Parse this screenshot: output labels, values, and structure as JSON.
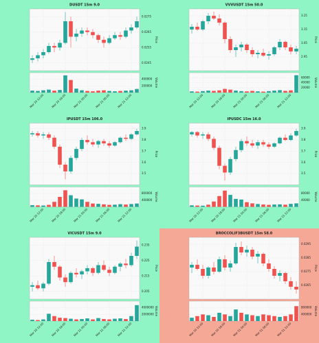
{
  "chart_data": [
    {
      "type": "candlestick",
      "title": "DUSDT 15m 9.0",
      "ylabel": "Price",
      "volume_label": "Volume",
      "background": "#8ff5c4",
      "up_color": "#26a69a",
      "down_color": "#ef5350",
      "ylim": [
        0.024,
        0.028
      ],
      "yticks": [
        0.0245,
        0.0255,
        0.0265,
        0.0275
      ],
      "volume_ylim": [
        0,
        600000
      ],
      "volume_yticks": [
        200000,
        400000
      ],
      "xticks": [
        {
          "value": 2,
          "label": "Mar 20 12:00"
        },
        {
          "value": 6,
          "label": "Mar 20 18:00"
        },
        {
          "value": 10,
          "label": "Mar 21 00:00"
        },
        {
          "value": 14,
          "label": "Mar 21 06:00"
        },
        {
          "value": 18,
          "label": "Mar 21 12:00"
        }
      ],
      "candles": [
        [
          0.0247,
          0.025,
          0.0245,
          0.0248,
          60000
        ],
        [
          0.0248,
          0.0252,
          0.0246,
          0.025,
          50000
        ],
        [
          0.025,
          0.0254,
          0.0248,
          0.0252,
          70000
        ],
        [
          0.0252,
          0.0258,
          0.0251,
          0.0256,
          90000
        ],
        [
          0.0256,
          0.0258,
          0.0252,
          0.0255,
          60000
        ],
        [
          0.0255,
          0.026,
          0.0253,
          0.0258,
          80000
        ],
        [
          0.0258,
          0.0278,
          0.0257,
          0.0272,
          520000
        ],
        [
          0.0272,
          0.0275,
          0.0255,
          0.0262,
          380000
        ],
        [
          0.0262,
          0.0267,
          0.0259,
          0.0264,
          120000
        ],
        [
          0.0264,
          0.0268,
          0.0262,
          0.0266,
          70000
        ],
        [
          0.0266,
          0.0268,
          0.0263,
          0.0265,
          50000
        ],
        [
          0.0265,
          0.0267,
          0.0261,
          0.0263,
          40000
        ],
        [
          0.0263,
          0.0264,
          0.0258,
          0.026,
          60000
        ],
        [
          0.026,
          0.0262,
          0.0255,
          0.0258,
          70000
        ],
        [
          0.0258,
          0.0263,
          0.0257,
          0.0261,
          50000
        ],
        [
          0.0261,
          0.0265,
          0.026,
          0.0263,
          40000
        ],
        [
          0.0263,
          0.0265,
          0.026,
          0.0262,
          50000
        ],
        [
          0.0262,
          0.0268,
          0.0261,
          0.0266,
          60000
        ],
        [
          0.0266,
          0.027,
          0.0264,
          0.0268,
          70000
        ],
        [
          0.0268,
          0.0275,
          0.0267,
          0.0272,
          110000
        ]
      ]
    },
    {
      "type": "candlestick",
      "title": "VVVUSDT 15m 50.0",
      "ylabel": "Price",
      "volume_label": "Volume",
      "background": "#8ff5c4",
      "up_color": "#26a69a",
      "down_color": "#ef5350",
      "ylim": [
        2.85,
        3.3
      ],
      "yticks": [
        2.95,
        3.05,
        3.15,
        3.25
      ],
      "volume_ylim": [
        0,
        80000
      ],
      "volume_yticks": [
        20000,
        40000,
        60000
      ],
      "xticks": [
        {
          "value": 2,
          "label": "Mar 20 12:00"
        },
        {
          "value": 6,
          "label": "Mar 20 18:00"
        },
        {
          "value": 10,
          "label": "Mar 21 00:00"
        },
        {
          "value": 14,
          "label": "Mar 21 06:00"
        },
        {
          "value": 18,
          "label": "Mar 21 12:00"
        }
      ],
      "candles": [
        [
          3.15,
          3.19,
          3.12,
          3.17,
          5000
        ],
        [
          3.17,
          3.2,
          3.14,
          3.15,
          4000
        ],
        [
          3.15,
          3.22,
          3.14,
          3.21,
          6000
        ],
        [
          3.21,
          3.27,
          3.19,
          3.25,
          8000
        ],
        [
          3.25,
          3.28,
          3.22,
          3.23,
          7000
        ],
        [
          3.23,
          3.26,
          3.18,
          3.2,
          9000
        ],
        [
          3.2,
          3.21,
          3.05,
          3.08,
          15000
        ],
        [
          3.08,
          3.1,
          2.98,
          3.0,
          12000
        ],
        [
          3.0,
          3.04,
          2.95,
          3.02,
          8000
        ],
        [
          3.02,
          3.06,
          2.99,
          3.04,
          6000
        ],
        [
          3.04,
          3.05,
          2.98,
          3.0,
          5000
        ],
        [
          3.0,
          3.02,
          2.95,
          2.97,
          7000
        ],
        [
          2.97,
          3.0,
          2.94,
          2.98,
          5000
        ],
        [
          2.98,
          3.01,
          2.95,
          2.96,
          4000
        ],
        [
          2.96,
          2.99,
          2.93,
          2.97,
          6000
        ],
        [
          2.97,
          3.03,
          2.96,
          3.02,
          8000
        ],
        [
          3.02,
          3.08,
          3.0,
          3.06,
          10000
        ],
        [
          3.06,
          3.07,
          3.0,
          3.02,
          7000
        ],
        [
          3.02,
          3.04,
          2.97,
          2.99,
          9000
        ],
        [
          2.99,
          3.03,
          2.97,
          3.01,
          70000
        ]
      ]
    },
    {
      "type": "candlestick",
      "title": "IPUSDT 15m 106.0",
      "ylabel": "Price",
      "volume_label": "Volume",
      "background": "#8ff5c4",
      "up_color": "#26a69a",
      "down_color": "#ef5350",
      "ylim": [
        3.4,
        3.95
      ],
      "yticks": [
        3.5,
        3.6,
        3.7,
        3.8,
        3.9
      ],
      "volume_ylim": [
        0,
        1200000
      ],
      "volume_yticks": [
        400000,
        800000
      ],
      "xticks": [
        {
          "value": 2,
          "label": "Mar 20 12:00"
        },
        {
          "value": 6,
          "label": "Mar 20 18:00"
        },
        {
          "value": 10,
          "label": "Mar 21 00:00"
        },
        {
          "value": 14,
          "label": "Mar 21 06:00"
        },
        {
          "value": 18,
          "label": "Mar 21 12:00"
        }
      ],
      "candles": [
        [
          3.85,
          3.88,
          3.83,
          3.86,
          100000
        ],
        [
          3.86,
          3.88,
          3.82,
          3.84,
          90000
        ],
        [
          3.84,
          3.87,
          3.81,
          3.85,
          80000
        ],
        [
          3.85,
          3.87,
          3.8,
          3.82,
          120000
        ],
        [
          3.82,
          3.84,
          3.72,
          3.74,
          300000
        ],
        [
          3.74,
          3.76,
          3.55,
          3.58,
          600000
        ],
        [
          3.58,
          3.6,
          3.45,
          3.52,
          1000000
        ],
        [
          3.52,
          3.66,
          3.5,
          3.64,
          700000
        ],
        [
          3.64,
          3.74,
          3.62,
          3.72,
          500000
        ],
        [
          3.72,
          3.82,
          3.7,
          3.8,
          450000
        ],
        [
          3.8,
          3.84,
          3.76,
          3.78,
          300000
        ],
        [
          3.78,
          3.81,
          3.74,
          3.76,
          200000
        ],
        [
          3.76,
          3.8,
          3.73,
          3.79,
          180000
        ],
        [
          3.79,
          3.81,
          3.75,
          3.77,
          150000
        ],
        [
          3.77,
          3.79,
          3.73,
          3.75,
          120000
        ],
        [
          3.75,
          3.79,
          3.74,
          3.78,
          130000
        ],
        [
          3.78,
          3.83,
          3.77,
          3.82,
          160000
        ],
        [
          3.82,
          3.85,
          3.79,
          3.81,
          140000
        ],
        [
          3.81,
          3.86,
          3.8,
          3.85,
          170000
        ],
        [
          3.85,
          3.9,
          3.84,
          3.88,
          200000
        ]
      ]
    },
    {
      "type": "candlestick",
      "title": "IPUSDC 15m 16.0",
      "ylabel": "Price",
      "volume_label": "Volume",
      "background": "#8ff5c4",
      "up_color": "#26a69a",
      "down_color": "#ef5350",
      "ylim": [
        3.4,
        3.95
      ],
      "yticks": [
        3.5,
        3.6,
        3.7,
        3.8,
        3.9
      ],
      "volume_ylim": [
        0,
        120000
      ],
      "volume_yticks": [
        40000,
        80000
      ],
      "xticks": [
        {
          "value": 2,
          "label": "Mar 20 12:00"
        },
        {
          "value": 6,
          "label": "Mar 20 18:00"
        },
        {
          "value": 10,
          "label": "Mar 21 00:00"
        },
        {
          "value": 14,
          "label": "Mar 21 06:00"
        },
        {
          "value": 18,
          "label": "Mar 21 12:00"
        }
      ],
      "candles": [
        [
          3.85,
          3.88,
          3.83,
          3.87,
          9000
        ],
        [
          3.87,
          3.88,
          3.82,
          3.84,
          8000
        ],
        [
          3.84,
          3.87,
          3.81,
          3.85,
          7000
        ],
        [
          3.85,
          3.87,
          3.79,
          3.81,
          13000
        ],
        [
          3.81,
          3.83,
          3.71,
          3.73,
          32000
        ],
        [
          3.73,
          3.75,
          3.54,
          3.57,
          65000
        ],
        [
          3.57,
          3.59,
          3.44,
          3.51,
          98000
        ],
        [
          3.51,
          3.65,
          3.49,
          3.63,
          72000
        ],
        [
          3.63,
          3.74,
          3.61,
          3.71,
          48000
        ],
        [
          3.71,
          3.81,
          3.69,
          3.79,
          44000
        ],
        [
          3.79,
          3.83,
          3.75,
          3.77,
          28000
        ],
        [
          3.77,
          3.8,
          3.73,
          3.75,
          21000
        ],
        [
          3.75,
          3.8,
          3.72,
          3.78,
          17000
        ],
        [
          3.78,
          3.8,
          3.74,
          3.76,
          14000
        ],
        [
          3.76,
          3.78,
          3.72,
          3.74,
          12000
        ],
        [
          3.74,
          3.78,
          3.73,
          3.77,
          14000
        ],
        [
          3.77,
          3.83,
          3.76,
          3.82,
          15000
        ],
        [
          3.82,
          3.85,
          3.79,
          3.8,
          13000
        ],
        [
          3.8,
          3.86,
          3.79,
          3.84,
          18000
        ],
        [
          3.84,
          3.9,
          3.83,
          3.88,
          21000
        ]
      ]
    },
    {
      "type": "candlestick",
      "title": "VICUSDT 15m 9.0",
      "ylabel": "Price",
      "volume_label": "Volume",
      "background": "#8ff5c4",
      "up_color": "#26a69a",
      "down_color": "#ef5350",
      "ylim": [
        0.2,
        0.24
      ],
      "yticks": [
        0.205,
        0.215,
        0.225,
        0.235
      ],
      "volume_ylim": [
        0,
        6000000
      ],
      "volume_yticks": [
        2000000,
        4000000
      ],
      "xticks": [
        {
          "value": 2,
          "label": "Mar 20 12:00"
        },
        {
          "value": 6,
          "label": "Mar 20 18:00"
        },
        {
          "value": 10,
          "label": "Mar 21 00:00"
        },
        {
          "value": 14,
          "label": "Mar 21 06:00"
        },
        {
          "value": 18,
          "label": "Mar 21 12:00"
        }
      ],
      "candles": [
        [
          0.208,
          0.211,
          0.205,
          0.209,
          400000
        ],
        [
          0.209,
          0.212,
          0.206,
          0.207,
          300000
        ],
        [
          0.207,
          0.211,
          0.205,
          0.21,
          500000
        ],
        [
          0.21,
          0.226,
          0.209,
          0.224,
          2200000
        ],
        [
          0.224,
          0.228,
          0.219,
          0.221,
          1500000
        ],
        [
          0.221,
          0.222,
          0.212,
          0.214,
          1000000
        ],
        [
          0.214,
          0.216,
          0.208,
          0.211,
          900000
        ],
        [
          0.211,
          0.218,
          0.21,
          0.217,
          700000
        ],
        [
          0.217,
          0.22,
          0.214,
          0.216,
          500000
        ],
        [
          0.216,
          0.219,
          0.213,
          0.218,
          600000
        ],
        [
          0.218,
          0.222,
          0.216,
          0.22,
          800000
        ],
        [
          0.22,
          0.221,
          0.215,
          0.217,
          500000
        ],
        [
          0.217,
          0.224,
          0.216,
          0.222,
          900000
        ],
        [
          0.222,
          0.225,
          0.218,
          0.219,
          600000
        ],
        [
          0.219,
          0.221,
          0.215,
          0.217,
          500000
        ],
        [
          0.217,
          0.222,
          0.216,
          0.221,
          700000
        ],
        [
          0.221,
          0.224,
          0.218,
          0.223,
          800000
        ],
        [
          0.223,
          0.226,
          0.22,
          0.222,
          600000
        ],
        [
          0.222,
          0.23,
          0.221,
          0.228,
          1500000
        ],
        [
          0.228,
          0.238,
          0.226,
          0.234,
          4800000
        ]
      ]
    },
    {
      "type": "candlestick",
      "title": "BROCCOLIF3BUSDT 15m 58.0",
      "ylabel": "Price",
      "volume_label": "Volume",
      "background": "#f6a896",
      "up_color": "#26a69a",
      "down_color": "#ef5350",
      "ylim": [
        0.0255,
        0.03
      ],
      "yticks": [
        0.0265,
        0.0275,
        0.0285,
        0.0295
      ],
      "volume_ylim": [
        0,
        1200000
      ],
      "volume_yticks": [
        400000,
        800000
      ],
      "xticks": [
        {
          "value": 2,
          "label": "Mar 20 12:00"
        },
        {
          "value": 6,
          "label": "Mar 20 18:00"
        },
        {
          "value": 10,
          "label": "Mar 21 00:00"
        },
        {
          "value": 14,
          "label": "Mar 21 06:00"
        },
        {
          "value": 18,
          "label": "Mar 21 12:00"
        }
      ],
      "candles": [
        [
          0.0278,
          0.0282,
          0.0274,
          0.028,
          200000
        ],
        [
          0.028,
          0.0284,
          0.0276,
          0.0277,
          300000
        ],
        [
          0.0277,
          0.028,
          0.027,
          0.0272,
          400000
        ],
        [
          0.0272,
          0.0279,
          0.027,
          0.0278,
          350000
        ],
        [
          0.0278,
          0.0282,
          0.0273,
          0.0275,
          250000
        ],
        [
          0.0275,
          0.0286,
          0.0274,
          0.0284,
          500000
        ],
        [
          0.0284,
          0.0287,
          0.0276,
          0.0278,
          400000
        ],
        [
          0.0278,
          0.0283,
          0.0275,
          0.0281,
          300000
        ],
        [
          0.0281,
          0.0296,
          0.028,
          0.0293,
          700000
        ],
        [
          0.0293,
          0.0297,
          0.0287,
          0.0289,
          500000
        ],
        [
          0.0289,
          0.0294,
          0.0286,
          0.0291,
          400000
        ],
        [
          0.0291,
          0.0293,
          0.0284,
          0.0286,
          350000
        ],
        [
          0.0286,
          0.029,
          0.0281,
          0.0288,
          300000
        ],
        [
          0.0288,
          0.0289,
          0.0279,
          0.0281,
          400000
        ],
        [
          0.0281,
          0.0284,
          0.0275,
          0.0277,
          350000
        ],
        [
          0.0277,
          0.0279,
          0.027,
          0.0272,
          300000
        ],
        [
          0.0272,
          0.0276,
          0.0268,
          0.0274,
          250000
        ],
        [
          0.0274,
          0.0275,
          0.0266,
          0.0268,
          300000
        ],
        [
          0.0268,
          0.0271,
          0.0262,
          0.0264,
          400000
        ],
        [
          0.0264,
          0.0268,
          0.0259,
          0.0262,
          900000
        ]
      ]
    }
  ]
}
